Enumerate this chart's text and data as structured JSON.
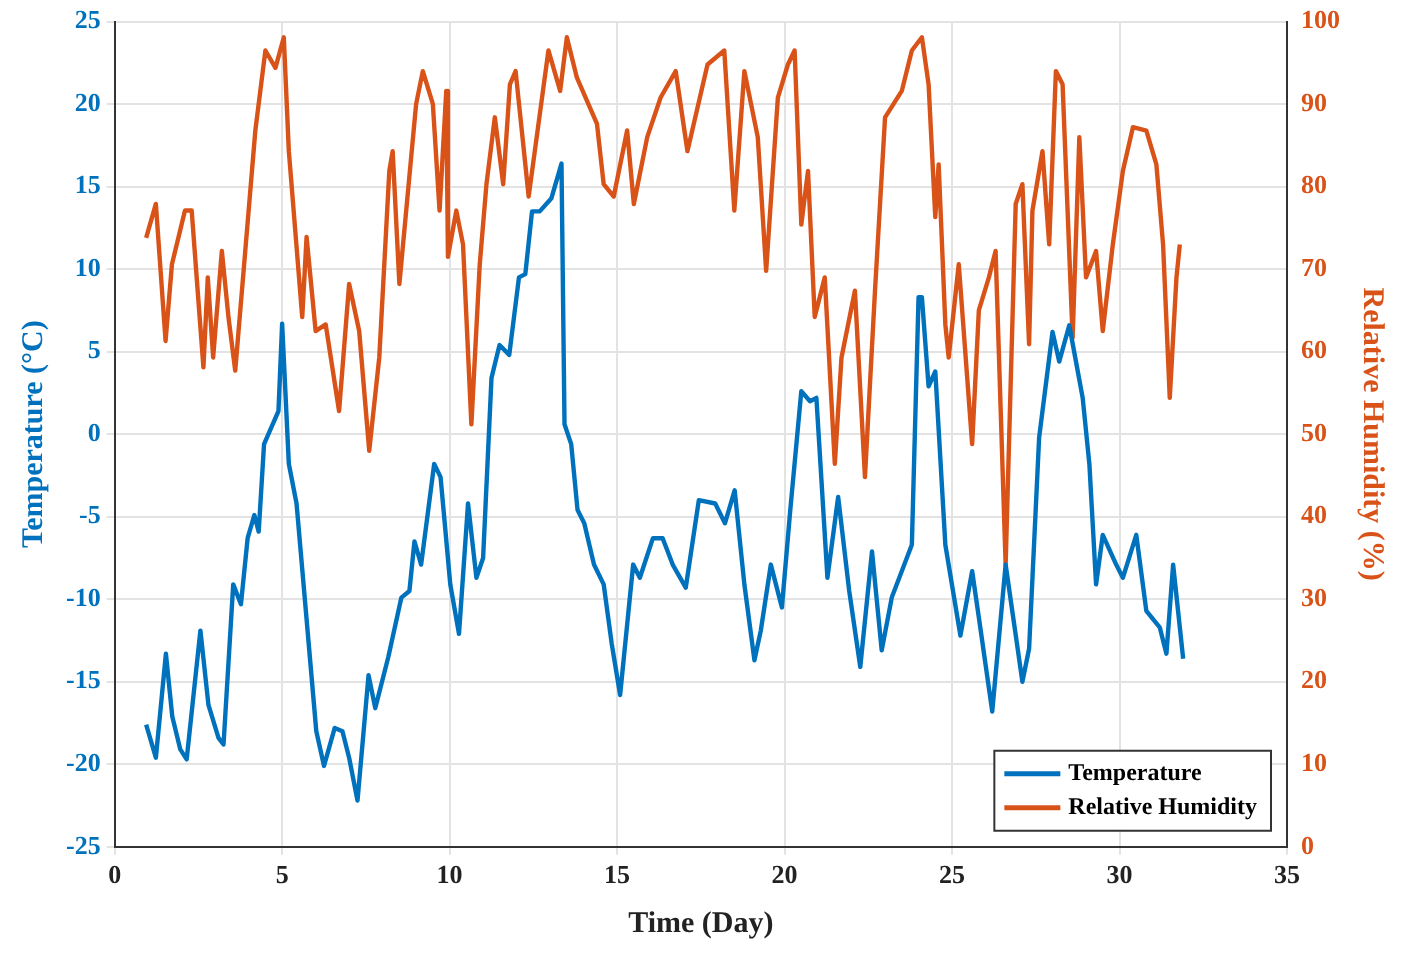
{
  "chart_data": {
    "type": "line",
    "xlabel": "Time (Day)",
    "ylabel": "Temperature (°C)",
    "y2label": "Relative Humidity (%)",
    "xlim": [
      0,
      35
    ],
    "xticks": [
      0,
      5,
      10,
      15,
      20,
      25,
      30,
      35
    ],
    "ylim": [
      -25,
      25
    ],
    "yticks": [
      -25,
      -20,
      -15,
      -10,
      -5,
      0,
      5,
      10,
      15,
      20,
      25
    ],
    "y2lim": [
      0,
      100
    ],
    "y2ticks": [
      0,
      10,
      20,
      30,
      40,
      50,
      60,
      70,
      80,
      90,
      100
    ],
    "grid": true,
    "legend": "bottom right",
    "marker": "none",
    "line_style": "solid",
    "series": [
      {
        "name": "Temperature",
        "color": "#0072bd",
        "x": [
          0.94,
          1.23,
          1.53,
          1.72,
          1.96,
          2.15,
          2.56,
          2.8,
          3.1,
          3.25,
          3.54,
          3.77,
          3.97,
          4.17,
          4.3,
          4.46,
          4.89,
          5.0,
          5.2,
          5.43,
          6.02,
          6.25,
          6.57,
          6.8,
          7.0,
          7.25,
          7.58,
          7.78,
          8.17,
          8.56,
          8.8,
          8.95,
          9.15,
          9.54,
          9.73,
          10.02,
          10.28,
          10.55,
          10.8,
          11.0,
          11.25,
          11.49,
          11.78,
          12.07,
          12.26,
          12.46,
          12.69,
          13.04,
          13.34,
          13.43,
          13.63,
          13.82,
          14.02,
          14.31,
          14.6,
          14.84,
          15.09,
          15.48,
          15.68,
          16.07,
          16.36,
          16.66,
          17.05,
          17.44,
          17.93,
          18.22,
          18.51,
          18.8,
          19.1,
          19.29,
          19.59,
          19.92,
          20.17,
          20.5,
          20.76,
          20.95,
          21.28,
          21.6,
          21.93,
          22.26,
          22.61,
          22.9,
          23.2,
          23.8,
          24.0,
          24.1,
          24.3,
          24.5,
          24.8,
          25.25,
          25.6,
          25.8,
          26.2,
          26.6,
          27.1,
          27.3,
          27.6,
          28.0,
          28.2,
          28.5,
          28.9,
          29.1,
          29.3,
          29.5,
          29.9,
          30.1,
          30.5,
          30.8,
          31.2,
          31.4,
          31.6,
          31.9
        ],
        "values": [
          -17.6,
          -19.6,
          -13.3,
          -17.1,
          -19.1,
          -19.7,
          -11.9,
          -16.4,
          -18.4,
          -18.8,
          -9.1,
          -10.3,
          -6.3,
          -4.9,
          -5.9,
          -0.6,
          1.4,
          6.7,
          -1.8,
          -4.2,
          -18,
          -20.1,
          -17.8,
          -18,
          -19.6,
          -22.2,
          -14.6,
          -16.6,
          -13.5,
          -9.9,
          -9.5,
          -6.5,
          -7.9,
          -1.8,
          -2.6,
          -9.1,
          -12.1,
          -4.2,
          -8.7,
          -7.5,
          3.4,
          5.4,
          4.8,
          9.5,
          9.7,
          13.5,
          13.5,
          14.3,
          16.4,
          0.6,
          -0.6,
          -4.6,
          -5.4,
          -7.9,
          -9.1,
          -12.7,
          -15.8,
          -7.9,
          -8.7,
          -6.3,
          -6.3,
          -7.9,
          -9.3,
          -4,
          -4.2,
          -5.4,
          -3.4,
          -9.1,
          -13.7,
          -11.9,
          -7.9,
          -10.5,
          -4.6,
          2.6,
          2,
          2.2,
          -8.7,
          -3.8,
          -9.5,
          -14.1,
          -7.1,
          -13.1,
          -9.9,
          -6.7,
          8.3,
          8.3,
          2.9,
          3.8,
          -6.7,
          -12.2,
          -8.3,
          -11.1,
          -16.8,
          -7.9,
          -15,
          -13,
          -0.2,
          6.2,
          4.4,
          6.6,
          2.2,
          -1.8,
          -9.1,
          -6.1,
          -7.9,
          -8.7,
          -6.1,
          -10.7,
          -11.7,
          -13.3,
          -7.9,
          -13.6
        ]
      },
      {
        "name": "Relative Humidity",
        "color": "#d95319",
        "axis": "y2",
        "x": [
          0.94,
          1.23,
          1.52,
          1.71,
          2.1,
          2.3,
          2.5,
          2.65,
          2.78,
          2.94,
          3.2,
          3.4,
          3.6,
          3.8,
          4.0,
          4.2,
          4.5,
          4.8,
          5.05,
          5.2,
          5.6,
          5.73,
          6.0,
          6.3,
          6.7,
          7.0,
          7.3,
          7.6,
          7.9,
          8.2,
          8.3,
          8.5,
          9.0,
          9.2,
          9.5,
          9.7,
          9.9,
          9.95,
          10.2,
          10.4,
          10.65,
          10.9,
          11.1,
          11.35,
          11.6,
          11.8,
          11.97,
          12.36,
          12.95,
          13.3,
          13.5,
          13.8,
          14.4,
          14.6,
          14.9,
          15.3,
          15.5,
          15.9,
          16.3,
          16.75,
          17.1,
          17.7,
          18.2,
          18.5,
          18.8,
          19.2,
          19.45,
          19.8,
          20.1,
          20.3,
          20.5,
          20.7,
          20.9,
          21.2,
          21.5,
          21.7,
          22.1,
          22.4,
          22.7,
          23.0,
          23.5,
          23.8,
          24.1,
          24.3,
          24.5,
          24.6,
          24.8,
          24.9,
          25.2,
          25.6,
          25.8,
          26.1,
          26.3,
          26.6,
          26.9,
          27.1,
          27.3,
          27.4,
          27.7,
          27.9,
          28.1,
          28.3,
          28.6,
          28.8,
          29.0,
          29.3,
          29.5,
          29.8,
          30.1,
          30.4,
          30.8,
          31.1,
          31.3,
          31.5,
          31.7,
          31.8
        ],
        "values": [
          73.8,
          77.9,
          61.3,
          70.6,
          77.1,
          77.1,
          66.2,
          58.1,
          69,
          59.3,
          72.2,
          64.1,
          57.7,
          67.4,
          77.1,
          86.8,
          96.5,
          94.4,
          98.1,
          84.3,
          64.2,
          73.9,
          62.5,
          63.3,
          52.8,
          68.2,
          62.5,
          48,
          59.3,
          81.9,
          84.3,
          68.2,
          90,
          94,
          90,
          77.1,
          91.6,
          71.5,
          77.1,
          73,
          51.2,
          70.6,
          80.3,
          88.4,
          80.3,
          92.4,
          94,
          78.8,
          96.5,
          91.6,
          98.1,
          93.2,
          87.6,
          80.3,
          78.8,
          86.8,
          77.9,
          86,
          90.8,
          94,
          84.3,
          94.8,
          96.5,
          77.1,
          94,
          86,
          69.8,
          90.8,
          94.8,
          96.5,
          75.4,
          81.9,
          64.2,
          69,
          46.4,
          59.3,
          67.4,
          44.8,
          67.4,
          88.4,
          91.6,
          96.5,
          98.1,
          92.4,
          76.3,
          82.7,
          63.3,
          59.3,
          70.6,
          48.8,
          65,
          69,
          72.2,
          34.2,
          77.9,
          80.3,
          60.9,
          77.1,
          84.3,
          73,
          94,
          92.4,
          61.7,
          86,
          69,
          72.2,
          62.5,
          73,
          81.9,
          87.2,
          86.8,
          82.7,
          73,
          54.4,
          69,
          73
        ]
      }
    ]
  }
}
